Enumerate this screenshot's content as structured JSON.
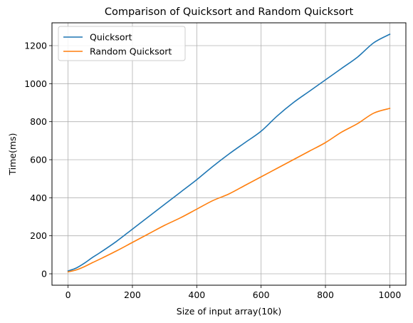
{
  "chart_data": {
    "type": "line",
    "title": "Comparison of Quicksort and Random Quicksort",
    "xlabel": "Size of input array(10k)",
    "ylabel": "Time(ms)",
    "xlim": [
      -50,
      1050
    ],
    "ylim": [
      -60,
      1320
    ],
    "xticks": [
      0,
      200,
      400,
      600,
      800,
      1000
    ],
    "yticks": [
      0,
      200,
      400,
      600,
      800,
      1000,
      1200
    ],
    "grid": true,
    "legend_position": "top-left",
    "x": [
      0,
      25,
      50,
      75,
      100,
      150,
      200,
      250,
      300,
      350,
      400,
      450,
      500,
      550,
      600,
      650,
      700,
      750,
      800,
      850,
      900,
      950,
      1000
    ],
    "series": [
      {
        "name": "Quicksort",
        "color": "#1f77b4",
        "values": [
          15,
          30,
          55,
          85,
          112,
          170,
          235,
          300,
          365,
          430,
          495,
          565,
          630,
          690,
          750,
          830,
          900,
          960,
          1020,
          1080,
          1140,
          1215,
          1260
        ]
      },
      {
        "name": "Random Quicksort",
        "color": "#ff7f0e",
        "values": [
          10,
          20,
          37,
          58,
          78,
          120,
          165,
          210,
          255,
          295,
          340,
          385,
          420,
          465,
          510,
          555,
          600,
          645,
          690,
          745,
          790,
          845,
          870
        ]
      }
    ]
  }
}
